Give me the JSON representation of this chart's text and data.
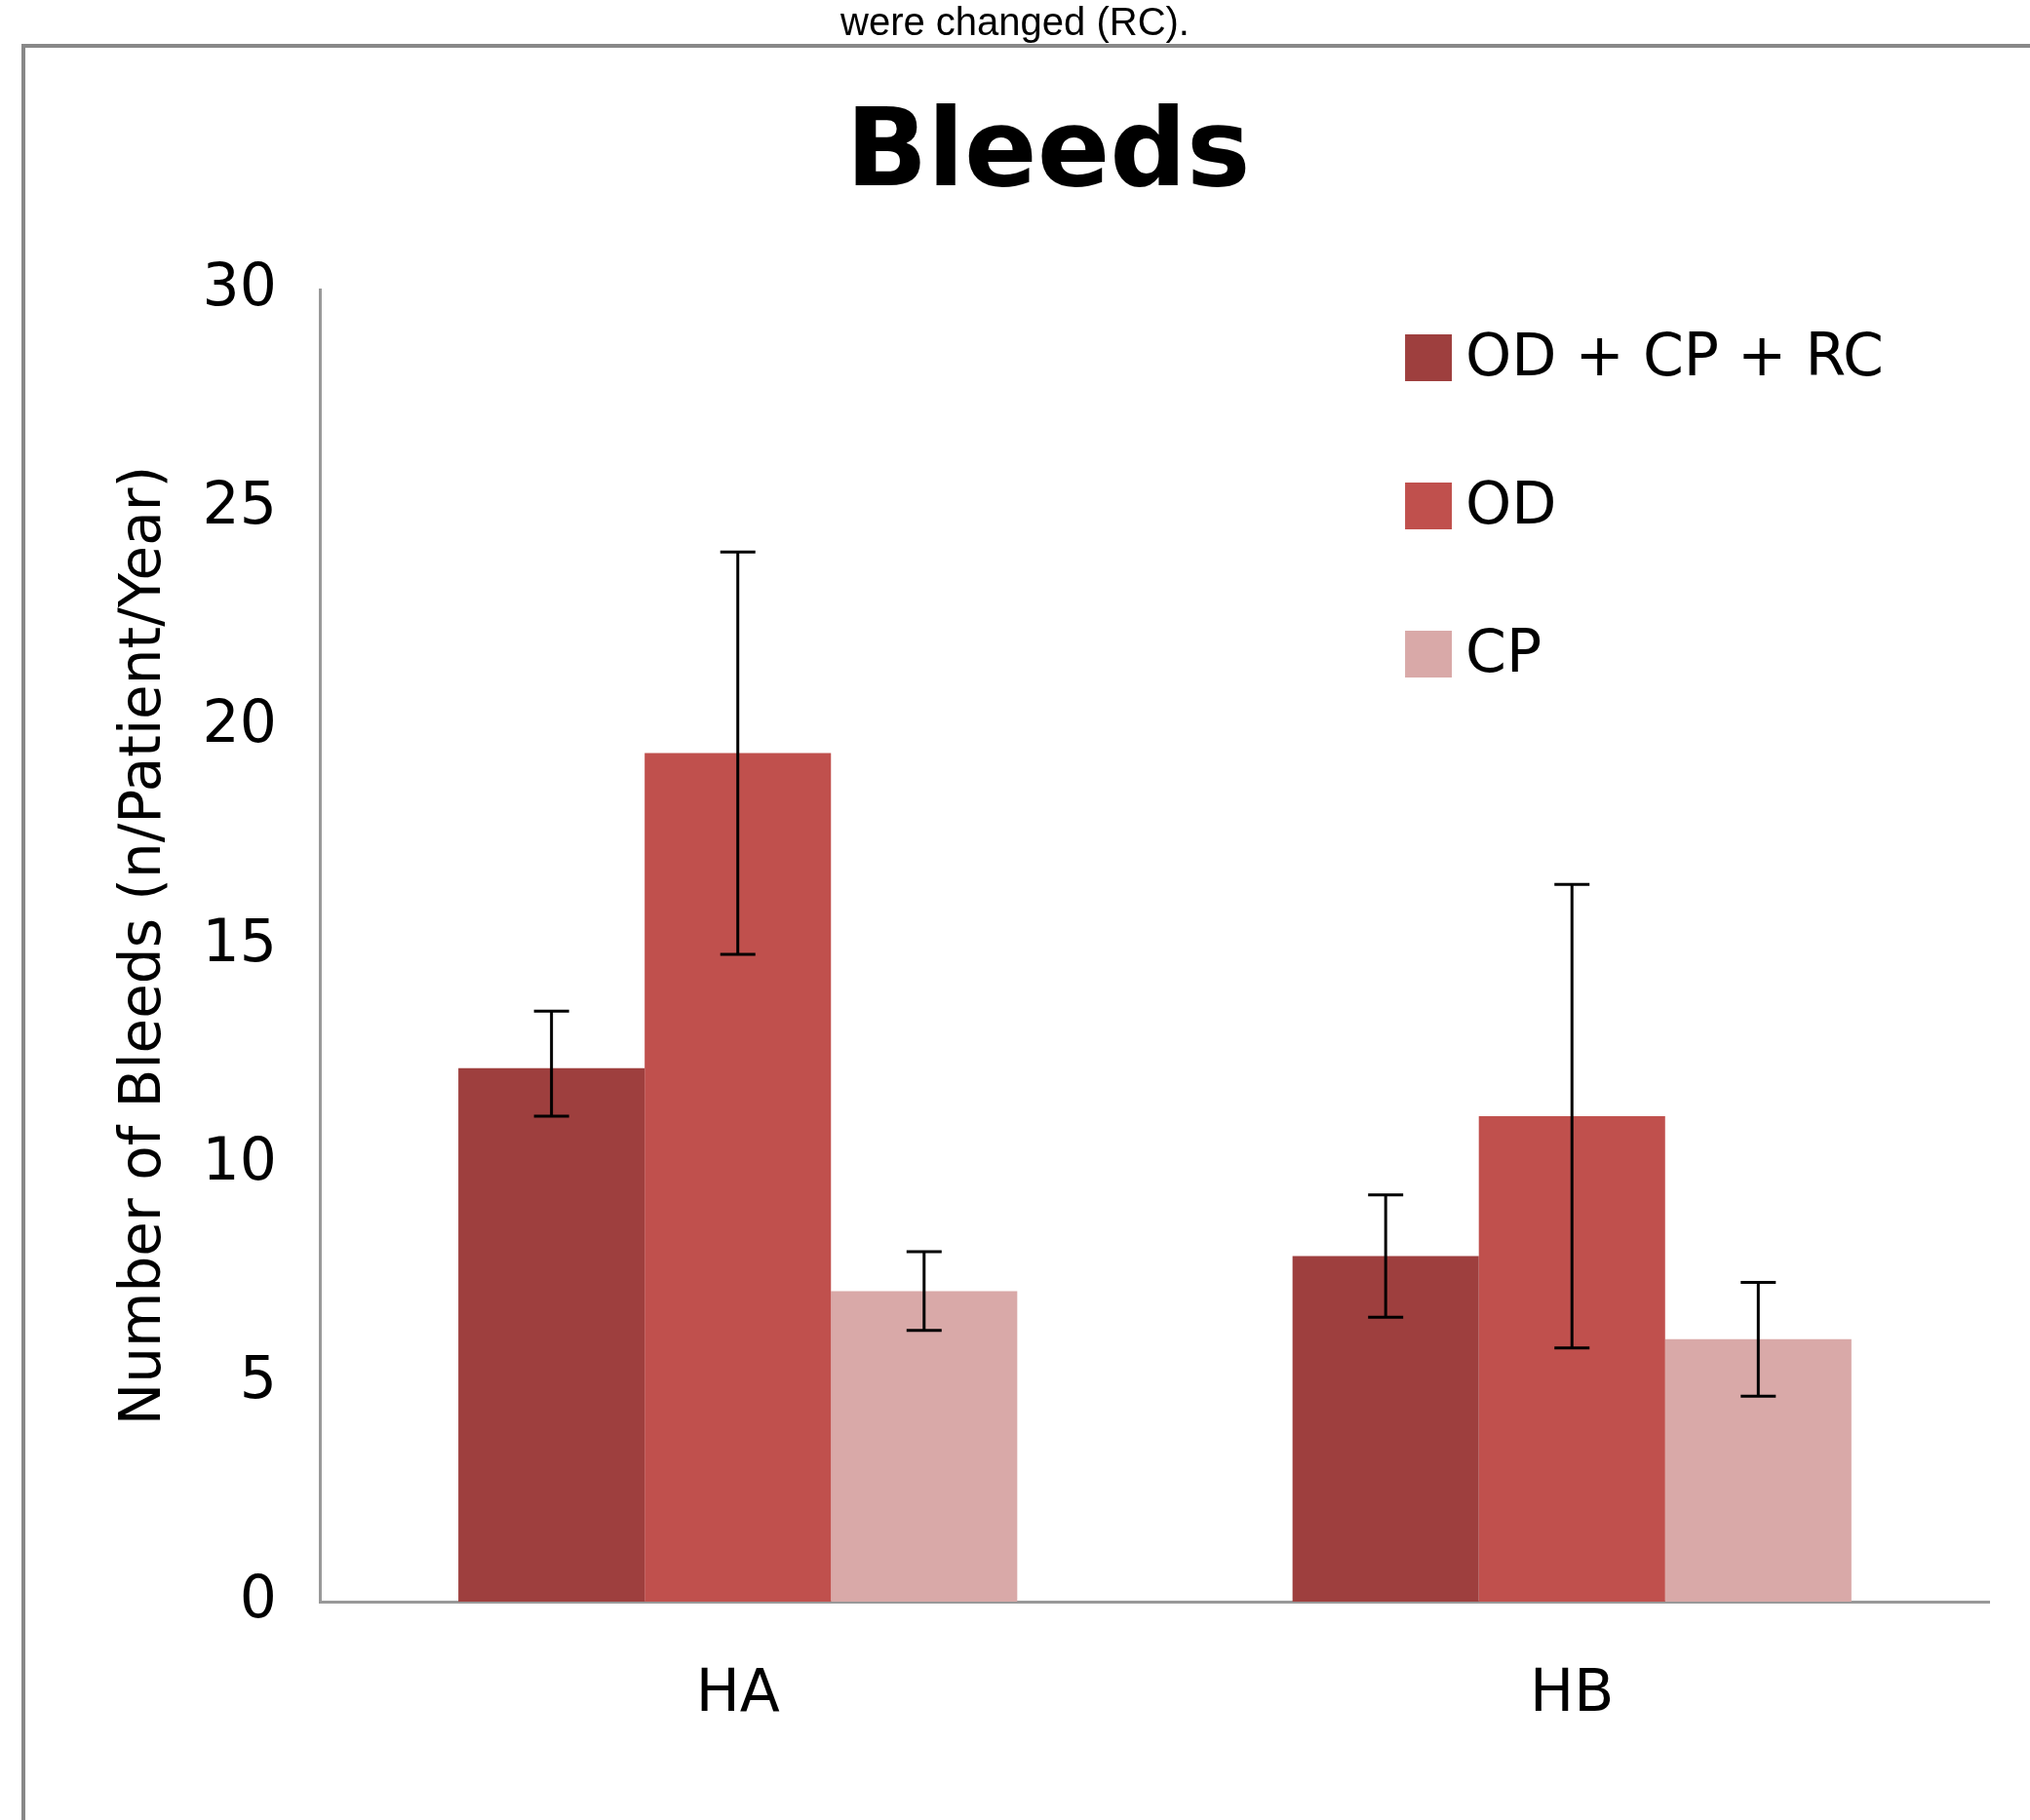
{
  "chart_data": {
    "type": "bar",
    "title": "Bleeds",
    "ylabel": "Number of Bleeds (n/Patient/Year)",
    "annotations": [
      "were changed (RC)."
    ],
    "categories": [
      "HA",
      "HB"
    ],
    "series": [
      {
        "name": "OD + CP + RC",
        "color": "#9e3f3e",
        "values": [
          12.2,
          7.9
        ],
        "errors": [
          [
            11.1,
            13.5
          ],
          [
            6.5,
            9.3
          ]
        ]
      },
      {
        "name": "OD",
        "color": "#c0504d",
        "values": [
          19.4,
          11.1
        ],
        "errors": [
          [
            14.8,
            24
          ],
          [
            5.8,
            16.4
          ]
        ]
      },
      {
        "name": "CP",
        "color": "#d9a9a8",
        "values": [
          7.1,
          6
        ],
        "errors": [
          [
            6.2,
            8
          ],
          [
            4.7,
            7.3
          ]
        ]
      }
    ],
    "ylim": [
      0,
      30
    ],
    "yticks": [
      0,
      5,
      10,
      15,
      20,
      25,
      30
    ],
    "grid": false,
    "legend": "top right"
  }
}
